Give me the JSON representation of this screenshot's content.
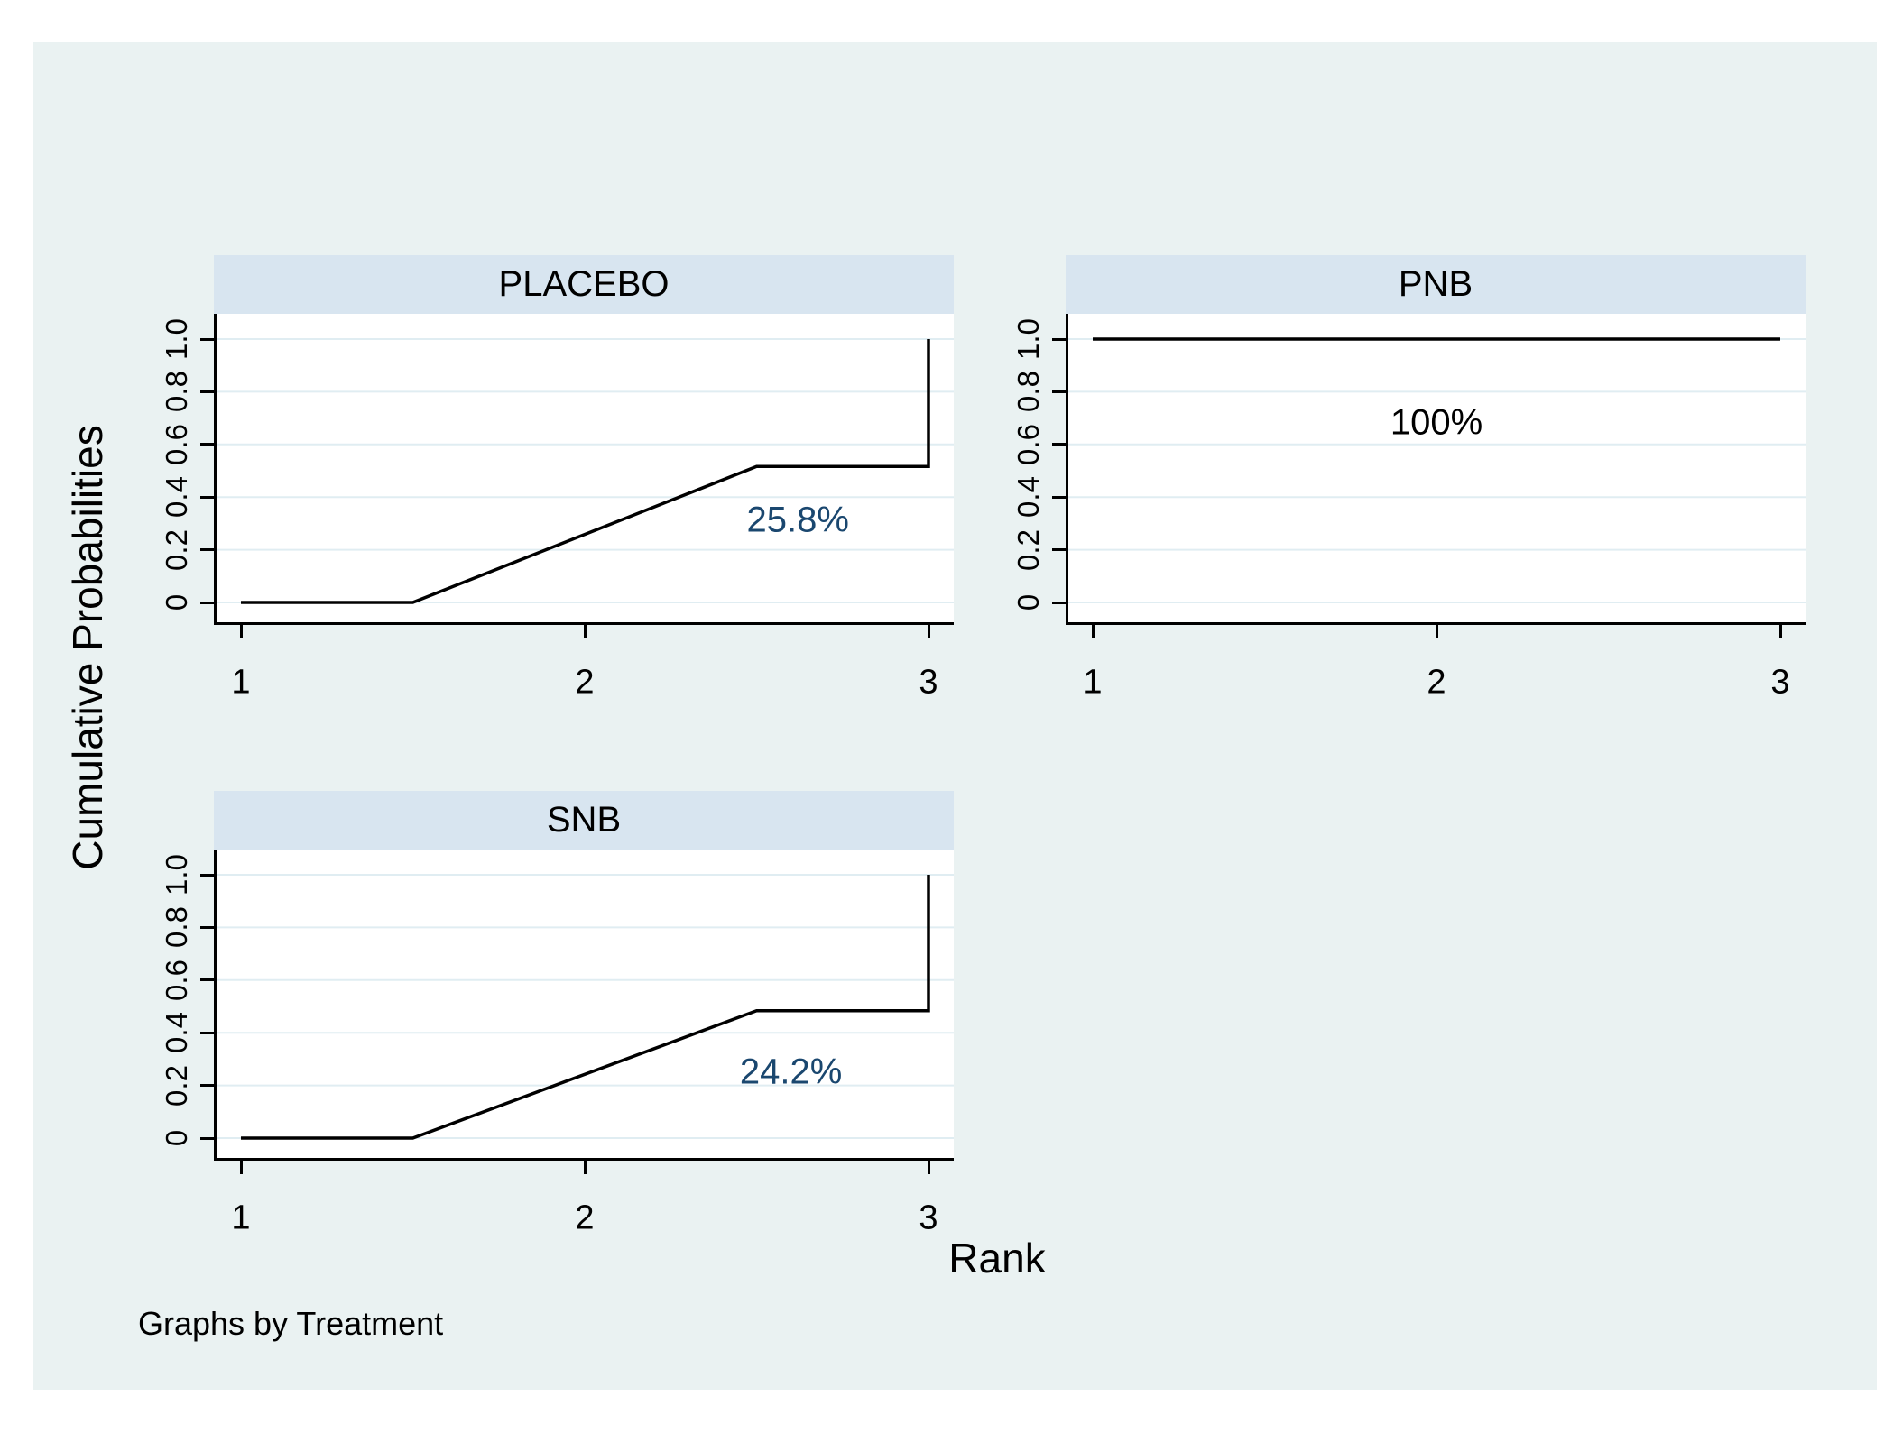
{
  "colors": {
    "canvas": "#eaf2f2",
    "band": "#d8e5f0",
    "grid": "#e0edf2",
    "axis": "#000000",
    "line": "#000000",
    "annotation_navy": "#1a476f",
    "annotation_black": "#000000"
  },
  "chart_data": {
    "type": "line",
    "title": "",
    "xlabel": "Rank",
    "ylabel": "Cumulative Probabilities",
    "note": "Graphs by Treatment",
    "grid": true,
    "legend": "none",
    "xlim": [
      1,
      3
    ],
    "ylim": [
      0,
      1
    ],
    "x_ticks": [
      1,
      2,
      3
    ],
    "x_tick_labels": [
      "1",
      "2",
      "3"
    ],
    "y_ticks": [
      0,
      0.2,
      0.4,
      0.6,
      0.8,
      1.0
    ],
    "y_tick_labels": [
      "0",
      "0.2",
      "0.4",
      "0.6",
      "0.8",
      "1.0"
    ],
    "panels": [
      {
        "title": "PLACEBO",
        "points": [
          [
            1,
            0
          ],
          [
            1.5,
            0
          ],
          [
            2.5,
            0.516
          ],
          [
            3,
            0.516
          ],
          [
            3,
            1.0
          ]
        ],
        "annotation": {
          "label": "25.8%",
          "x": 2.62,
          "y": 0.31,
          "color": "#1a476f"
        }
      },
      {
        "title": "PNB",
        "points": [
          [
            1,
            1.0
          ],
          [
            3,
            1.0
          ]
        ],
        "annotation": {
          "label": "100%",
          "x": 2.0,
          "y": 0.68,
          "color": "#000000"
        }
      },
      {
        "title": "SNB",
        "points": [
          [
            1,
            0
          ],
          [
            1.5,
            0
          ],
          [
            2.5,
            0.484
          ],
          [
            3,
            0.484
          ],
          [
            3,
            1.0
          ]
        ],
        "annotation": {
          "label": "24.2%",
          "x": 2.6,
          "y": 0.25,
          "color": "#1a476f"
        }
      }
    ]
  }
}
